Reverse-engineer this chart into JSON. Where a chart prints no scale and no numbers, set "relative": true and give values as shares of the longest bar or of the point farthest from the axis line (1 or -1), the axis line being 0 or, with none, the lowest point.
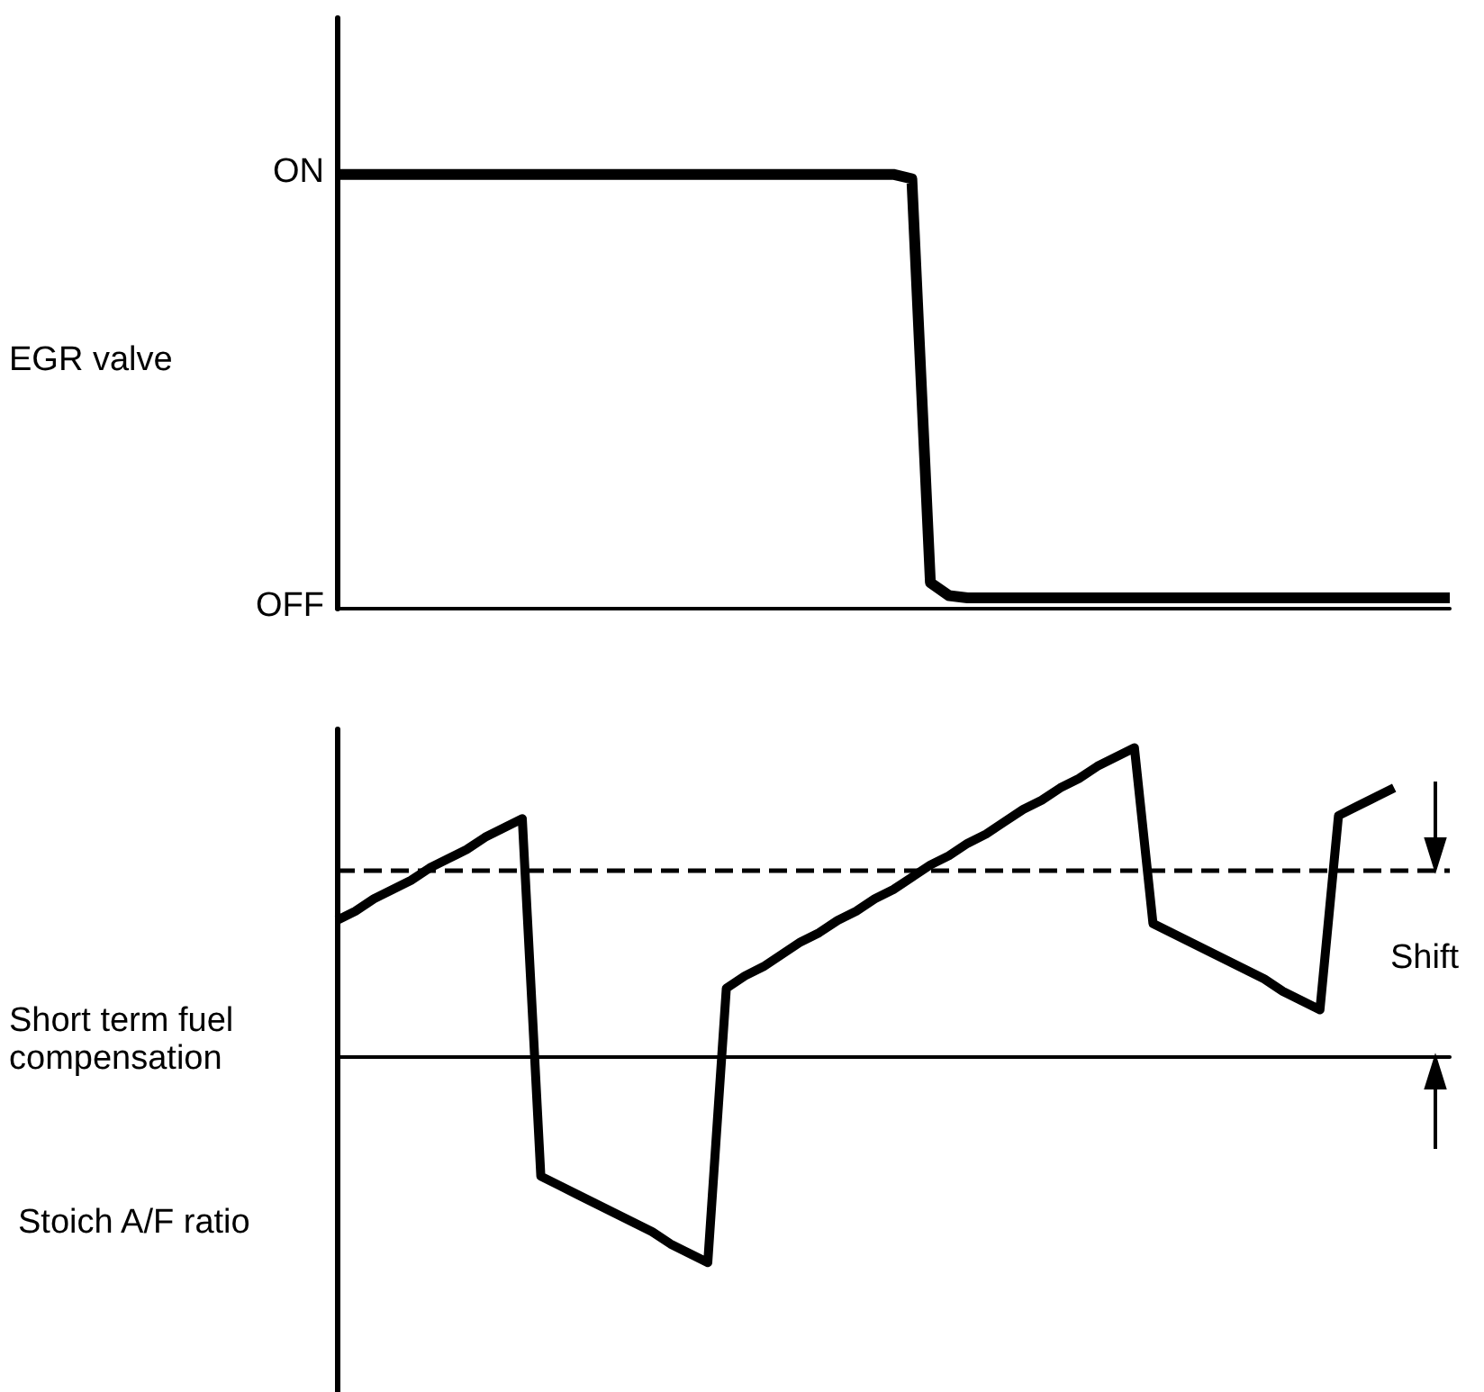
{
  "chart_data": [
    {
      "type": "line",
      "relative": true,
      "ylabel": "EGR valve",
      "annotations": [
        "ON",
        "OFF"
      ],
      "categories": [
        null,
        null,
        null,
        null,
        null,
        null,
        null,
        null,
        null,
        null,
        null,
        null,
        null,
        null,
        null,
        null,
        null,
        null,
        null,
        null,
        null,
        null,
        null,
        null,
        null,
        null,
        null,
        null,
        null,
        null,
        null,
        null,
        null,
        null,
        null,
        null,
        null,
        null,
        null,
        null,
        null,
        null,
        null,
        null,
        null,
        null,
        null,
        null,
        null,
        null,
        null,
        null,
        null,
        null,
        null,
        null,
        null,
        null,
        null,
        null,
        null
      ],
      "tick_labels": false,
      "line_style": "solid",
      "series": [
        {
          "color": "#000000",
          "values": [
            1,
            1,
            1,
            1,
            1,
            1,
            1,
            1,
            1,
            1,
            1,
            1,
            1,
            1,
            1,
            1,
            1,
            1,
            1,
            1,
            1,
            1,
            1,
            1,
            1,
            1,
            1,
            1,
            1,
            1,
            1,
            0.99,
            0.06,
            0.03,
            0.025,
            0.025,
            0.025,
            0.025,
            0.025,
            0.025,
            0.025,
            0.025,
            0.025,
            0.025,
            0.025,
            0.025,
            0.025,
            0.025,
            0.025,
            0.025,
            0.025,
            0.025,
            0.025,
            0.025,
            0.025,
            0.025,
            0.025,
            0.025,
            0.025,
            0.025,
            0.025
          ]
        }
      ]
    },
    {
      "type": "line",
      "relative": true,
      "ylabel": "Short term fuel compensation",
      "annotations": [
        "Stoich A/F ratio",
        "Shift"
      ],
      "categories": [
        null,
        null,
        null,
        null,
        null,
        null,
        null,
        null,
        null,
        null,
        null,
        null,
        null,
        null,
        null,
        null,
        null,
        null,
        null,
        null,
        null,
        null,
        null,
        null,
        null,
        null,
        null,
        null,
        null,
        null,
        null,
        null,
        null,
        null,
        null,
        null,
        null,
        null,
        null,
        null,
        null,
        null,
        null,
        null,
        null,
        null,
        null,
        null,
        null,
        null,
        null,
        null,
        null,
        null,
        null,
        null,
        null,
        null,
        null,
        null,
        null
      ],
      "tick_labels": false,
      "line_style": "solid",
      "ref_lines": [
        {
          "axis": "y",
          "value": 0.6,
          "color": "#000000",
          "line_style": "dashed"
        }
      ],
      "series": [
        {
          "color": "#000000",
          "values": [
            0.44,
            0.47,
            0.51,
            0.54,
            0.57,
            0.61,
            0.64,
            0.67,
            0.71,
            0.74,
            0.77,
            -0.39,
            -0.42,
            -0.45,
            -0.48,
            -0.51,
            -0.54,
            -0.57,
            -0.61,
            -0.64,
            -0.67,
            0.22,
            0.26,
            0.29,
            0.33,
            0.37,
            0.4,
            0.44,
            0.47,
            0.51,
            0.54,
            0.58,
            0.62,
            0.65,
            0.69,
            0.72,
            0.76,
            0.8,
            0.83,
            0.87,
            0.9,
            0.94,
            0.97,
            1,
            0.43,
            0.4,
            0.37,
            0.34,
            0.31,
            0.28,
            0.25,
            0.21,
            0.18,
            0.15,
            0.78,
            0.81,
            0.84,
            0.87,
            null,
            null,
            null
          ]
        }
      ]
    }
  ]
}
